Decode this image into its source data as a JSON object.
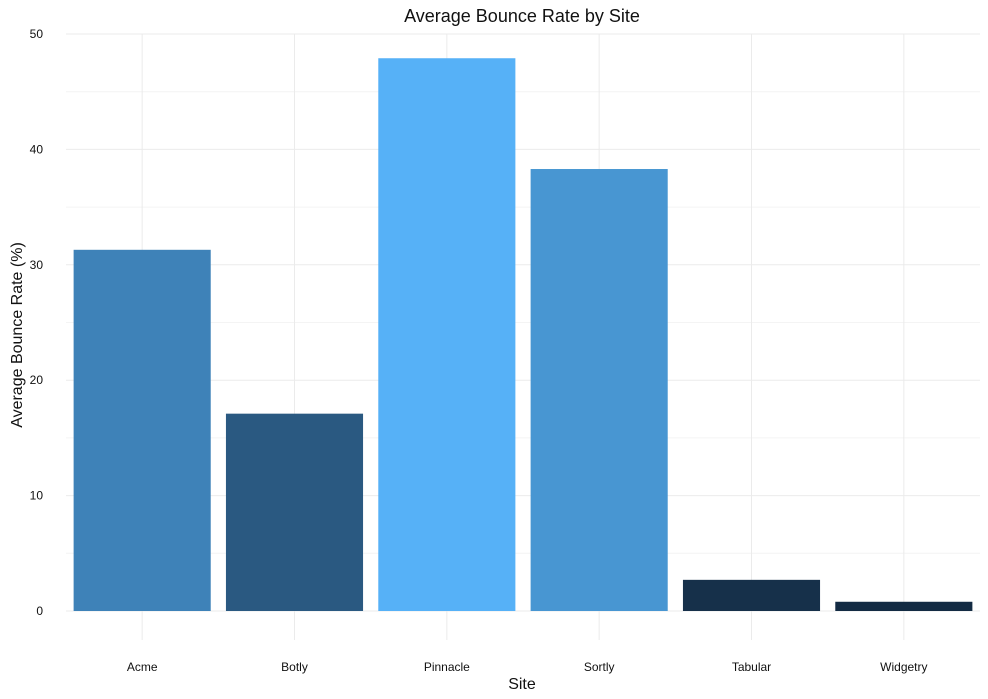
{
  "chart_data": {
    "type": "bar",
    "title": "Average Bounce Rate by Site",
    "xlabel": "Site",
    "ylabel": "Average Bounce Rate (%)",
    "categories": [
      "Acme",
      "Botly",
      "Pinnacle",
      "Sortly",
      "Tabular",
      "Widgetry"
    ],
    "values": [
      31.3,
      17.1,
      47.9,
      38.3,
      2.7,
      0.8
    ],
    "ylim": [
      0,
      50
    ],
    "yticks": [
      0,
      10,
      20,
      30,
      40,
      50
    ],
    "ytick_labels": [
      "0",
      "10",
      "20",
      "30",
      "40",
      "50"
    ],
    "grid": true,
    "bar_color_scale": {
      "low": "#132b43",
      "high": "#56b1f7"
    }
  }
}
